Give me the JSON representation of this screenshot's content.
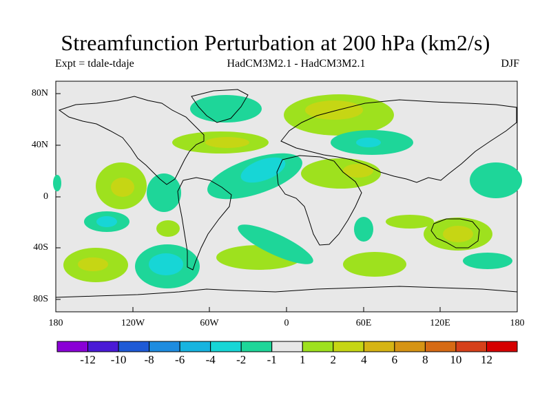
{
  "title": "Streamfunction Perturbation at 200 hPa (km2/s)",
  "subtitle": {
    "left": "Expt = tdale-tdaje",
    "center": "HadCM3M2.1 - HadCM3M2.1",
    "right": "DJF"
  },
  "map": {
    "background_color": "#e8e8e8",
    "lon_range": [
      -180,
      180
    ],
    "lat_range": [
      -90,
      90
    ],
    "x_ticks": [
      "180",
      "120W",
      "60W",
      "0",
      "60E",
      "120E",
      "180"
    ],
    "y_ticks": [
      "80N",
      "40N",
      "0",
      "40S",
      "80S"
    ]
  },
  "colorbar": {
    "labels": [
      "-12",
      "-10",
      "-8",
      "-6",
      "-4",
      "-2",
      "-1",
      "1",
      "2",
      "4",
      "6",
      "8",
      "10",
      "12"
    ],
    "colors": [
      "#8a00d6",
      "#4a1ad6",
      "#1e5ad6",
      "#1e8ce0",
      "#17b4e0",
      "#17d6d6",
      "#1ed699",
      "#e8e8e8",
      "#9ee11e",
      "#c6d614",
      "#d6b414",
      "#d69414",
      "#d66a14",
      "#d6401a",
      "#d60000"
    ]
  }
}
